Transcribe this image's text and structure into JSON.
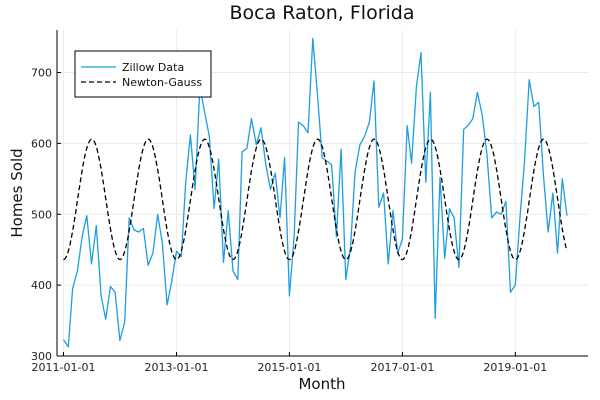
{
  "chart_data": {
    "type": "line",
    "title": "Boca Raton, Florida",
    "xlabel": "Month",
    "ylabel": "Homes Sold",
    "xlim": [
      "2010-11-20",
      "2020-04-15"
    ],
    "ylim": [
      300,
      760
    ],
    "x_ticks": [
      "2011-01-01",
      "2013-01-01",
      "2015-01-01",
      "2017-01-01",
      "2019-01-01"
    ],
    "y_ticks": [
      300,
      400,
      500,
      600,
      700
    ],
    "grid": true,
    "legend_position": "top-left",
    "series": [
      {
        "name": "Zillow Data",
        "style": "solid",
        "color": "#1f9ede",
        "points": [
          [
            "2011-01-01",
            323
          ],
          [
            "2011-02-01",
            313
          ],
          [
            "2011-03-01",
            395
          ],
          [
            "2011-04-01",
            420
          ],
          [
            "2011-05-01",
            468
          ],
          [
            "2011-06-01",
            498
          ],
          [
            "2011-07-01",
            430
          ],
          [
            "2011-08-01",
            484
          ],
          [
            "2011-09-01",
            385
          ],
          [
            "2011-10-01",
            352
          ],
          [
            "2011-11-01",
            398
          ],
          [
            "2011-12-01",
            390
          ],
          [
            "2012-01-01",
            322
          ],
          [
            "2012-02-01",
            348
          ],
          [
            "2012-03-01",
            495
          ],
          [
            "2012-04-01",
            478
          ],
          [
            "2012-05-01",
            475
          ],
          [
            "2012-06-01",
            480
          ],
          [
            "2012-07-01",
            428
          ],
          [
            "2012-08-01",
            445
          ],
          [
            "2012-09-01",
            500
          ],
          [
            "2012-10-01",
            460
          ],
          [
            "2012-11-01",
            372
          ],
          [
            "2012-12-01",
            405
          ],
          [
            "2013-01-01",
            448
          ],
          [
            "2013-02-01",
            440
          ],
          [
            "2013-03-01",
            545
          ],
          [
            "2013-04-01",
            612
          ],
          [
            "2013-05-01",
            535
          ],
          [
            "2013-06-01",
            680
          ],
          [
            "2013-07-01",
            645
          ],
          [
            "2013-08-01",
            610
          ],
          [
            "2013-09-01",
            508
          ],
          [
            "2013-10-01",
            578
          ],
          [
            "2013-11-01",
            432
          ],
          [
            "2013-12-01",
            505
          ],
          [
            "2014-01-01",
            420
          ],
          [
            "2014-02-01",
            408
          ],
          [
            "2014-03-01",
            588
          ],
          [
            "2014-04-01",
            593
          ],
          [
            "2014-05-01",
            635
          ],
          [
            "2014-06-01",
            598
          ],
          [
            "2014-07-01",
            622
          ],
          [
            "2014-08-01",
            570
          ],
          [
            "2014-09-01",
            535
          ],
          [
            "2014-10-01",
            558
          ],
          [
            "2014-11-01",
            495
          ],
          [
            "2014-12-01",
            580
          ],
          [
            "2015-01-01",
            385
          ],
          [
            "2015-02-01",
            470
          ],
          [
            "2015-03-01",
            630
          ],
          [
            "2015-04-01",
            625
          ],
          [
            "2015-05-01",
            615
          ],
          [
            "2015-06-01",
            748
          ],
          [
            "2015-07-01",
            670
          ],
          [
            "2015-08-01",
            580
          ],
          [
            "2015-09-01",
            575
          ],
          [
            "2015-10-01",
            570
          ],
          [
            "2015-11-01",
            468
          ],
          [
            "2015-12-01",
            592
          ],
          [
            "2016-01-01",
            408
          ],
          [
            "2016-02-01",
            455
          ],
          [
            "2016-03-01",
            560
          ],
          [
            "2016-04-01",
            598
          ],
          [
            "2016-05-01",
            610
          ],
          [
            "2016-06-01",
            630
          ],
          [
            "2016-07-01",
            688
          ],
          [
            "2016-08-01",
            510
          ],
          [
            "2016-09-01",
            530
          ],
          [
            "2016-10-01",
            430
          ],
          [
            "2016-11-01",
            505
          ],
          [
            "2016-12-01",
            445
          ],
          [
            "2017-01-01",
            465
          ],
          [
            "2017-02-01",
            625
          ],
          [
            "2017-03-01",
            572
          ],
          [
            "2017-04-01",
            680
          ],
          [
            "2017-05-01",
            728
          ],
          [
            "2017-06-01",
            545
          ],
          [
            "2017-07-01",
            672
          ],
          [
            "2017-08-01",
            353
          ],
          [
            "2017-09-01",
            552
          ],
          [
            "2017-10-01",
            438
          ],
          [
            "2017-11-01",
            508
          ],
          [
            "2017-12-01",
            495
          ],
          [
            "2018-01-01",
            425
          ],
          [
            "2018-02-01",
            620
          ],
          [
            "2018-03-01",
            625
          ],
          [
            "2018-04-01",
            635
          ],
          [
            "2018-05-01",
            672
          ],
          [
            "2018-06-01",
            640
          ],
          [
            "2018-07-01",
            585
          ],
          [
            "2018-08-01",
            495
          ],
          [
            "2018-09-01",
            503
          ],
          [
            "2018-10-01",
            500
          ],
          [
            "2018-11-01",
            518
          ],
          [
            "2018-12-01",
            390
          ],
          [
            "2019-01-01",
            400
          ],
          [
            "2019-02-01",
            498
          ],
          [
            "2019-03-01",
            572
          ],
          [
            "2019-04-01",
            690
          ],
          [
            "2019-05-01",
            652
          ],
          [
            "2019-06-01",
            658
          ],
          [
            "2019-07-01",
            558
          ],
          [
            "2019-08-01",
            475
          ],
          [
            "2019-09-01",
            530
          ],
          [
            "2019-10-01",
            445
          ],
          [
            "2019-11-01",
            550
          ],
          [
            "2019-12-01",
            498
          ]
        ]
      },
      {
        "name": "Newton-Gauss",
        "style": "dashed",
        "color": "#000000",
        "model": {
          "mean": 521,
          "amplitude": 85,
          "period_months": 12,
          "peak_month": 6
        },
        "x_range": [
          "2011-01-01",
          "2019-12-01"
        ]
      }
    ]
  }
}
